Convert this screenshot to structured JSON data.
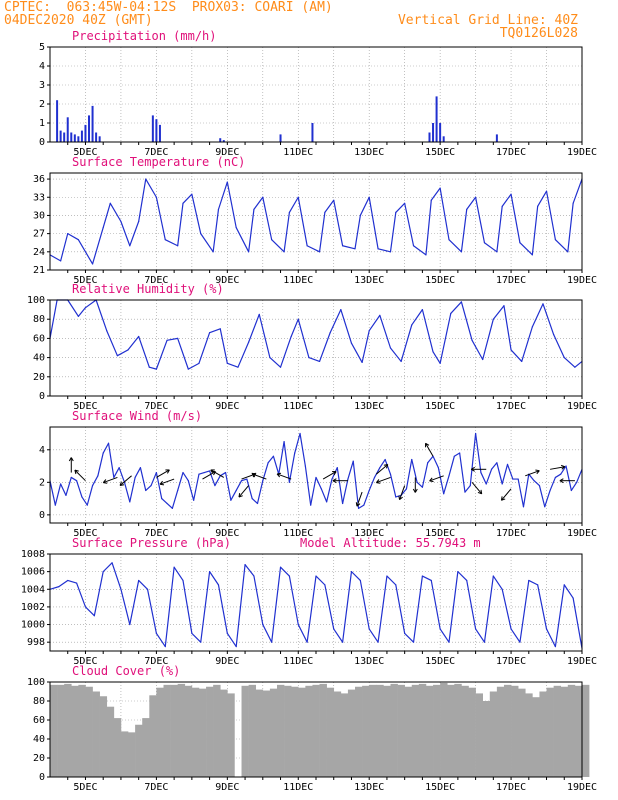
{
  "header": {
    "line1": "CPTEC:  063:45W-04:12S  PROX03: COARI (AM)",
    "line2": "04DEC2020 40Z (GMT)",
    "grid_note": "Vertical Grid Line: 40Z",
    "run_code": "TQ0126L028"
  },
  "colors": {
    "header": "#ff8c1a",
    "title": "#e0107a",
    "line": "#2030d0",
    "cloud": "#a6a6a6",
    "grid": "#999999"
  },
  "chart_data": [
    {
      "type": "bar",
      "title": "Precipitation (mm/h)",
      "x": [
        4.2,
        4.3,
        4.4,
        4.5,
        4.6,
        4.7,
        4.8,
        4.9,
        5.0,
        5.1,
        5.2,
        5.3,
        5.4,
        6.9,
        7.0,
        7.1,
        8.8,
        8.9,
        10.5,
        11.4,
        14.7,
        14.8,
        14.9,
        15.0,
        15.1,
        16.6
      ],
      "values": [
        2.2,
        0.6,
        0.5,
        1.3,
        0.5,
        0.4,
        0.3,
        0.6,
        0.9,
        1.4,
        1.9,
        0.5,
        0.3,
        1.4,
        1.2,
        0.9,
        0.2,
        0.1,
        0.4,
        1.0,
        0.5,
        1.0,
        2.4,
        1.0,
        0.3,
        0.4
      ],
      "ylim": [
        0,
        5
      ],
      "yticks": [
        "0",
        "1",
        "2",
        "3",
        "4",
        "5"
      ],
      "xticks": [
        "5DEC",
        "7DEC",
        "9DEC",
        "11DEC",
        "13DEC",
        "15DEC",
        "17DEC",
        "19DEC"
      ]
    },
    {
      "type": "line",
      "title": "Surface Temperature (nC)",
      "x": [
        4.0,
        4.3,
        4.5,
        4.8,
        5.2,
        5.5,
        5.7,
        6.0,
        6.25,
        6.5,
        6.7,
        7.0,
        7.25,
        7.6,
        7.75,
        8.0,
        8.25,
        8.6,
        8.75,
        9.0,
        9.25,
        9.6,
        9.75,
        10.0,
        10.25,
        10.6,
        10.75,
        11.0,
        11.25,
        11.6,
        11.75,
        12.0,
        12.25,
        12.6,
        12.75,
        13.0,
        13.25,
        13.6,
        13.75,
        14.0,
        14.25,
        14.6,
        14.75,
        15.0,
        15.25,
        15.6,
        15.75,
        16.0,
        16.25,
        16.6,
        16.75,
        17.0,
        17.25,
        17.6,
        17.75,
        18.0,
        18.25,
        18.6,
        18.75,
        19.0
      ],
      "values": [
        23.5,
        22.5,
        27.0,
        26.0,
        22.0,
        28.0,
        32.0,
        29.0,
        25.0,
        29.0,
        36.0,
        33.0,
        26.0,
        25.0,
        32.0,
        33.5,
        27.0,
        24.0,
        31.0,
        35.5,
        28.0,
        24.0,
        31.0,
        33.0,
        26.0,
        24.0,
        30.5,
        33.0,
        25.0,
        24.0,
        30.5,
        32.5,
        25.0,
        24.5,
        30.0,
        33.0,
        24.5,
        24.0,
        30.5,
        32.0,
        25.0,
        23.5,
        32.5,
        34.5,
        26.0,
        24.0,
        31.0,
        33.0,
        25.5,
        24.0,
        31.5,
        33.5,
        25.5,
        23.5,
        31.5,
        34.0,
        26.0,
        24.0,
        32.0,
        36.0
      ],
      "ylim": [
        21,
        37
      ],
      "yticks": [
        "21",
        "24",
        "27",
        "30",
        "33",
        "36"
      ],
      "xticks": [
        "5DEC",
        "7DEC",
        "9DEC",
        "11DEC",
        "13DEC",
        "15DEC",
        "17DEC",
        "19DEC"
      ]
    },
    {
      "type": "line",
      "title": "Relative Humidity (%)",
      "x": [
        4.0,
        4.2,
        4.5,
        4.8,
        5.0,
        5.3,
        5.6,
        5.9,
        6.2,
        6.5,
        6.8,
        7.0,
        7.3,
        7.6,
        7.9,
        8.2,
        8.5,
        8.8,
        9.0,
        9.3,
        9.6,
        9.9,
        10.2,
        10.5,
        10.8,
        11.0,
        11.3,
        11.6,
        11.9,
        12.2,
        12.5,
        12.8,
        13.0,
        13.3,
        13.6,
        13.9,
        14.2,
        14.5,
        14.8,
        15.0,
        15.3,
        15.6,
        15.9,
        16.2,
        16.5,
        16.8,
        17.0,
        17.3,
        17.6,
        17.9,
        18.2,
        18.5,
        18.8,
        19.0
      ],
      "values": [
        60,
        100,
        100,
        83,
        92,
        100,
        68,
        42,
        48,
        62,
        30,
        28,
        58,
        60,
        28,
        34,
        66,
        70,
        34,
        30,
        56,
        85,
        40,
        30,
        62,
        80,
        40,
        36,
        66,
        90,
        55,
        35,
        68,
        84,
        50,
        36,
        74,
        90,
        46,
        34,
        86,
        98,
        58,
        38,
        80,
        94,
        48,
        36,
        72,
        96,
        64,
        40,
        30,
        36
      ],
      "ylim": [
        0,
        100
      ],
      "yticks": [
        "0",
        "20",
        "40",
        "60",
        "80",
        "100"
      ],
      "xticks": [
        "5DEC",
        "7DEC",
        "9DEC",
        "11DEC",
        "13DEC",
        "15DEC",
        "17DEC",
        "19DEC"
      ]
    },
    {
      "type": "line",
      "title": "Surface Wind (m/s)",
      "x": [
        4.0,
        4.15,
        4.3,
        4.45,
        4.6,
        4.75,
        4.9,
        5.05,
        5.2,
        5.35,
        5.5,
        5.65,
        5.8,
        5.95,
        6.1,
        6.25,
        6.4,
        6.55,
        6.7,
        6.85,
        7.0,
        7.15,
        7.3,
        7.45,
        7.6,
        7.75,
        7.9,
        8.05,
        8.2,
        8.35,
        8.5,
        8.65,
        8.8,
        8.95,
        9.1,
        9.25,
        9.4,
        9.55,
        9.7,
        9.85,
        10.0,
        10.15,
        10.3,
        10.45,
        10.6,
        10.75,
        10.9,
        11.05,
        11.2,
        11.35,
        11.5,
        11.65,
        11.8,
        11.95,
        12.1,
        12.25,
        12.4,
        12.55,
        12.7,
        12.85,
        13.0,
        13.15,
        13.3,
        13.45,
        13.6,
        13.75,
        13.9,
        14.05,
        14.2,
        14.35,
        14.5,
        14.65,
        14.8,
        14.95,
        15.1,
        15.25,
        15.4,
        15.55,
        15.7,
        15.85,
        16.0,
        16.15,
        16.3,
        16.45,
        16.6,
        16.75,
        16.9,
        17.05,
        17.2,
        17.35,
        17.5,
        17.65,
        17.8,
        17.95,
        18.1,
        18.25,
        18.4,
        18.55,
        18.7,
        18.85,
        19.0
      ],
      "values": [
        2.1,
        0.6,
        1.9,
        1.2,
        2.3,
        2.1,
        1.1,
        0.6,
        1.8,
        2.4,
        3.8,
        4.4,
        2.3,
        2.9,
        2.0,
        0.8,
        2.3,
        2.9,
        1.5,
        1.8,
        2.6,
        1.0,
        0.7,
        0.4,
        1.5,
        2.6,
        2.1,
        0.9,
        2.5,
        2.6,
        2.7,
        1.8,
        2.4,
        2.6,
        0.9,
        1.5,
        2.1,
        2.2,
        1.0,
        0.7,
        2.1,
        3.2,
        3.6,
        2.5,
        4.5,
        2.0,
        3.8,
        5.0,
        3.0,
        0.6,
        2.3,
        1.6,
        0.8,
        2.2,
        2.9,
        0.7,
        2.2,
        3.3,
        0.4,
        0.6,
        1.5,
        2.3,
        2.9,
        3.4,
        2.5,
        1.1,
        1.2,
        1.6,
        3.4,
        2.0,
        1.7,
        3.2,
        3.6,
        2.9,
        1.3,
        2.4,
        3.6,
        3.8,
        1.4,
        1.8,
        5.0,
        2.6,
        1.9,
        2.8,
        3.2,
        1.9,
        3.1,
        2.2,
        2.2,
        0.5,
        2.5,
        2.1,
        1.8,
        0.5,
        1.5,
        2.3,
        2.5,
        3.0,
        1.5,
        2.0,
        2.8
      ],
      "arrows": [
        {
          "x": 4.6,
          "y": 2.6,
          "angle": 90
        },
        {
          "x": 5.0,
          "y": 2.1,
          "angle": 135
        },
        {
          "x": 5.9,
          "y": 2.3,
          "angle": 200
        },
        {
          "x": 6.3,
          "y": 2.4,
          "angle": 220
        },
        {
          "x": 7.0,
          "y": 2.3,
          "angle": 30
        },
        {
          "x": 7.5,
          "y": 2.2,
          "angle": 200
        },
        {
          "x": 8.3,
          "y": 2.2,
          "angle": 30
        },
        {
          "x": 8.9,
          "y": 2.3,
          "angle": 150
        },
        {
          "x": 9.4,
          "y": 2.2,
          "angle": 20
        },
        {
          "x": 9.6,
          "y": 1.8,
          "angle": 230
        },
        {
          "x": 10.1,
          "y": 2.2,
          "angle": 160
        },
        {
          "x": 10.8,
          "y": 2.2,
          "angle": 160
        },
        {
          "x": 11.7,
          "y": 2.2,
          "angle": 30
        },
        {
          "x": 12.4,
          "y": 2.1,
          "angle": 180
        },
        {
          "x": 12.8,
          "y": 1.4,
          "angle": 250
        },
        {
          "x": 13.2,
          "y": 2.5,
          "angle": 40
        },
        {
          "x": 13.6,
          "y": 2.3,
          "angle": 200
        },
        {
          "x": 14.0,
          "y": 1.8,
          "angle": 250
        },
        {
          "x": 14.3,
          "y": 2.3,
          "angle": 270
        },
        {
          "x": 14.8,
          "y": 3.6,
          "angle": 120
        },
        {
          "x": 15.1,
          "y": 2.4,
          "angle": 200
        },
        {
          "x": 15.9,
          "y": 2.0,
          "angle": 310
        },
        {
          "x": 16.3,
          "y": 2.8,
          "angle": 180
        },
        {
          "x": 17.0,
          "y": 1.6,
          "angle": 230
        },
        {
          "x": 17.4,
          "y": 2.4,
          "angle": 20
        },
        {
          "x": 18.1,
          "y": 2.8,
          "angle": 10
        },
        {
          "x": 18.8,
          "y": 2.1,
          "angle": 180
        }
      ],
      "ylim": [
        -0.5,
        5.4
      ],
      "yticks": [
        "0",
        "2",
        "4"
      ],
      "xticks": [
        "5DEC",
        "7DEC",
        "9DEC",
        "11DEC",
        "13DEC",
        "15DEC",
        "17DEC",
        "19DEC"
      ]
    },
    {
      "type": "line",
      "title": "Surface Pressure (hPa)",
      "subtitle": "Model Altitude: 55.7943 m",
      "x": [
        4.0,
        4.25,
        4.5,
        4.75,
        5.0,
        5.25,
        5.5,
        5.75,
        6.0,
        6.25,
        6.5,
        6.75,
        7.0,
        7.25,
        7.5,
        7.75,
        8.0,
        8.25,
        8.5,
        8.75,
        9.0,
        9.25,
        9.5,
        9.75,
        10.0,
        10.25,
        10.5,
        10.75,
        11.0,
        11.25,
        11.5,
        11.75,
        12.0,
        12.25,
        12.5,
        12.75,
        13.0,
        13.25,
        13.5,
        13.75,
        14.0,
        14.25,
        14.5,
        14.75,
        15.0,
        15.25,
        15.5,
        15.75,
        16.0,
        16.25,
        16.5,
        16.75,
        17.0,
        17.25,
        17.5,
        17.75,
        18.0,
        18.25,
        18.5,
        18.75,
        19.0
      ],
      "values": [
        1004.0,
        1004.3,
        1005.0,
        1004.7,
        1002.0,
        1001.0,
        1006.0,
        1007.0,
        1004.0,
        1000.0,
        1005.0,
        1004.0,
        999.0,
        997.5,
        1006.5,
        1005.0,
        999.0,
        998.0,
        1006.0,
        1004.5,
        999.0,
        997.5,
        1006.8,
        1005.5,
        1000.0,
        998.0,
        1006.5,
        1005.5,
        1000.0,
        998.0,
        1005.5,
        1004.5,
        999.5,
        998.0,
        1006.0,
        1005.0,
        999.5,
        998.0,
        1005.5,
        1004.5,
        999.0,
        998.0,
        1005.5,
        1005.0,
        999.5,
        998.0,
        1006.0,
        1005.0,
        999.5,
        998.0,
        1005.5,
        1004.0,
        999.5,
        998.0,
        1005.0,
        1004.5,
        999.5,
        997.5,
        1004.5,
        1003.0,
        997.3
      ],
      "ylim": [
        997,
        1008
      ],
      "yticks": [
        "998",
        "1000",
        "1002",
        "1004",
        "1006",
        "1008"
      ],
      "xticks": [
        "5DEC",
        "7DEC",
        "9DEC",
        "11DEC",
        "13DEC",
        "15DEC",
        "17DEC",
        "19DEC"
      ]
    },
    {
      "type": "area",
      "title": "Cloud Cover (%)",
      "x": [
        4.0,
        4.2,
        4.4,
        4.6,
        4.8,
        5.0,
        5.2,
        5.4,
        5.6,
        5.8,
        6.0,
        6.2,
        6.4,
        6.6,
        6.8,
        7.0,
        7.2,
        7.4,
        7.6,
        7.8,
        8.0,
        8.2,
        8.4,
        8.6,
        8.8,
        9.0,
        9.2,
        9.4,
        9.6,
        9.8,
        10.0,
        10.2,
        10.4,
        10.6,
        10.8,
        11.0,
        11.2,
        11.4,
        11.6,
        11.8,
        12.0,
        12.2,
        12.4,
        12.6,
        12.8,
        13.0,
        13.2,
        13.4,
        13.6,
        13.8,
        14.0,
        14.2,
        14.4,
        14.6,
        14.8,
        15.0,
        15.2,
        15.4,
        15.6,
        15.8,
        16.0,
        16.2,
        16.4,
        16.6,
        16.8,
        17.0,
        17.2,
        17.4,
        17.6,
        17.8,
        18.0,
        18.2,
        18.4,
        18.6,
        18.8,
        19.0
      ],
      "values": [
        97,
        97,
        98,
        96,
        97,
        95,
        90,
        85,
        74,
        62,
        48,
        47,
        55,
        62,
        86,
        94,
        97,
        97,
        98,
        96,
        94,
        93,
        95,
        97,
        92,
        88,
        0,
        96,
        97,
        92,
        91,
        93,
        97,
        96,
        95,
        94,
        96,
        97,
        98,
        94,
        90,
        88,
        92,
        95,
        96,
        97,
        97,
        96,
        98,
        97,
        95,
        97,
        98,
        96,
        97,
        99,
        97,
        98,
        96,
        94,
        88,
        80,
        90,
        95,
        97,
        96,
        93,
        88,
        84,
        90,
        94,
        96,
        95,
        97,
        96,
        97
      ],
      "ylim": [
        0,
        100
      ],
      "yticks": [
        "0",
        "20",
        "40",
        "60",
        "80",
        "100"
      ],
      "xticks": [
        "5DEC",
        "7DEC",
        "9DEC",
        "11DEC",
        "13DEC",
        "15DEC",
        "17DEC",
        "19DEC"
      ]
    }
  ]
}
